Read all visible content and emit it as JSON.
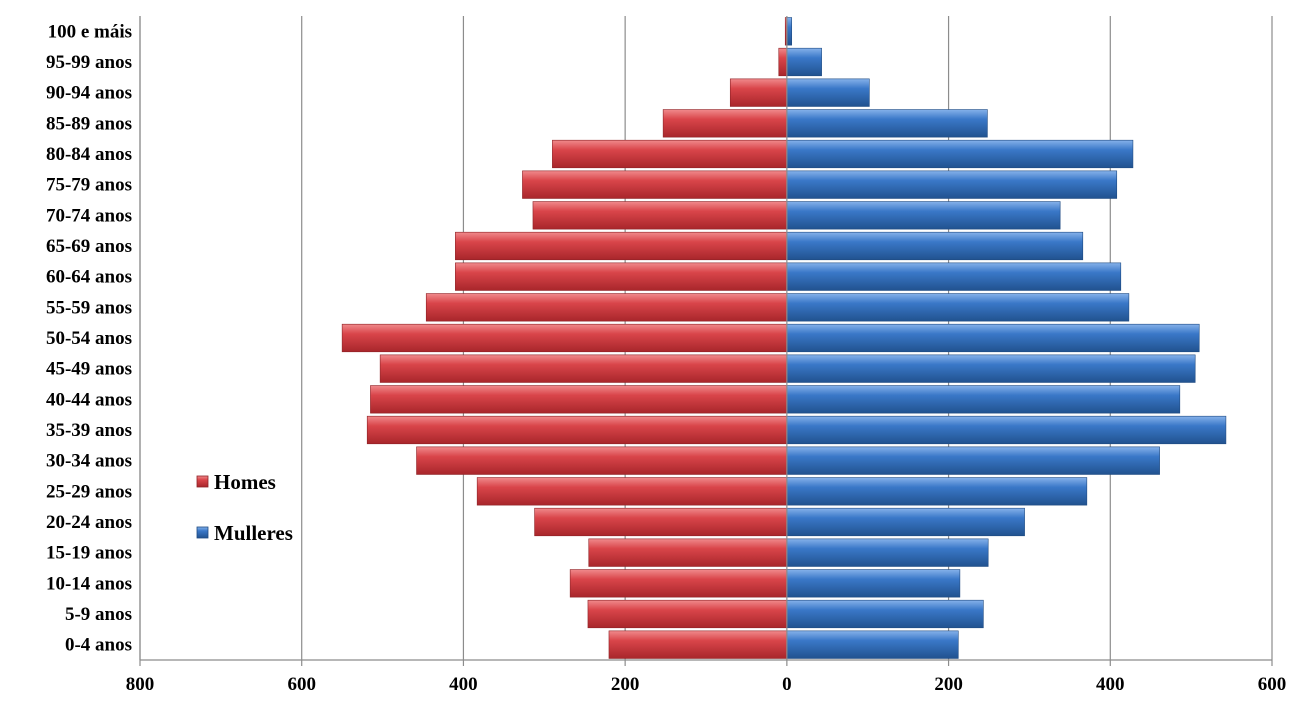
{
  "chart_data": {
    "type": "bar",
    "orientation": "horizontal",
    "categories": [
      "0-4 anos",
      "5-9 anos",
      "10-14 anos",
      "15-19 anos",
      "20-24 anos",
      "25-29 anos",
      "30-34 anos",
      "35-39 anos",
      "40-44 anos",
      "45-49 anos",
      "50-54 anos",
      "55-59 anos",
      "60-64 anos",
      "65-69 anos",
      "70-74 anos",
      "75-79 anos",
      "80-84 anos",
      "85-89 anos",
      "90-94 anos",
      "95-99 anos",
      "100 e máis"
    ],
    "series": [
      {
        "name": "Homes",
        "side": "left",
        "color": "#d9454a",
        "values": [
          220,
          246,
          268,
          245,
          312,
          383,
          458,
          519,
          515,
          503,
          550,
          446,
          410,
          410,
          314,
          327,
          290,
          153,
          70,
          10,
          2
        ]
      },
      {
        "name": "Mulleres",
        "side": "right",
        "color": "#3a78c8",
        "values": [
          212,
          243,
          214,
          249,
          294,
          371,
          461,
          543,
          486,
          505,
          510,
          423,
          413,
          366,
          338,
          408,
          428,
          248,
          102,
          43,
          6
        ]
      }
    ],
    "x_ticks": [
      {
        "value": -800,
        "label": "800"
      },
      {
        "value": -600,
        "label": "600"
      },
      {
        "value": -400,
        "label": "400"
      },
      {
        "value": -200,
        "label": "200"
      },
      {
        "value": 0,
        "label": "0"
      },
      {
        "value": 200,
        "label": "200"
      },
      {
        "value": 400,
        "label": "400"
      },
      {
        "value": 600,
        "label": "600"
      }
    ],
    "xlim": [
      -800,
      600
    ],
    "grid": true,
    "legend_position": "left-center"
  }
}
